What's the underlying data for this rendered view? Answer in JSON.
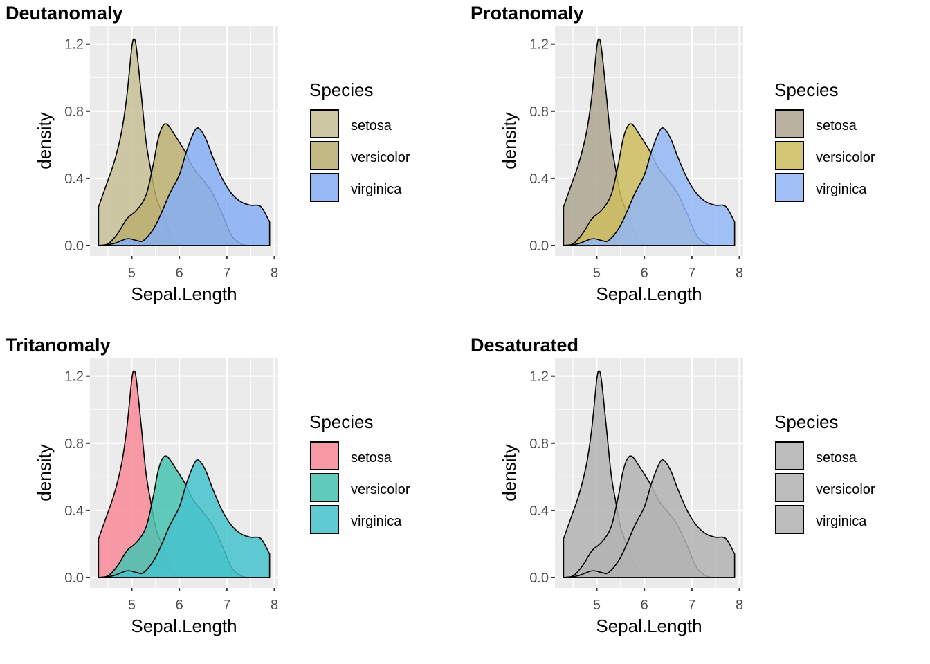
{
  "figure": {
    "layout": "2x2 grid of density plots"
  },
  "chart_data": [
    {
      "type": "area",
      "title": "Deutanomaly",
      "xlabel": "Sepal.Length",
      "ylabel": "density",
      "xlim": [
        4.12,
        8.08
      ],
      "ylim": [
        -0.062,
        1.31
      ],
      "xticks": [
        "5",
        "6",
        "7",
        "8"
      ],
      "yticks": [
        "0.0",
        "0.4",
        "0.8",
        "1.2"
      ],
      "grid": true,
      "legend": {
        "title": "Species",
        "position": "right"
      },
      "series": [
        {
          "name": "setosa",
          "fill": "#C8BF95",
          "alpha": 0.85
        },
        {
          "name": "versicolor",
          "fill": "#BBAF6E",
          "alpha": 0.85
        },
        {
          "name": "virginica",
          "fill": "#86AEF6",
          "alpha": 0.85
        }
      ]
    },
    {
      "type": "area",
      "title": "Protanomaly",
      "xlabel": "Sepal.Length",
      "ylabel": "density",
      "xlim": [
        4.12,
        8.08
      ],
      "ylim": [
        -0.062,
        1.31
      ],
      "xticks": [
        "5",
        "6",
        "7",
        "8"
      ],
      "yticks": [
        "0.0",
        "0.4",
        "0.8",
        "1.2"
      ],
      "grid": true,
      "legend": {
        "title": "Species",
        "position": "right"
      },
      "series": [
        {
          "name": "setosa",
          "fill": "#AFA690",
          "alpha": 0.85
        },
        {
          "name": "versicolor",
          "fill": "#CDBD5E",
          "alpha": 0.85
        },
        {
          "name": "virginica",
          "fill": "#93B7F7",
          "alpha": 0.85
        }
      ]
    },
    {
      "type": "area",
      "title": "Tritanomaly",
      "xlabel": "Sepal.Length",
      "ylabel": "density",
      "xlim": [
        4.12,
        8.08
      ],
      "ylim": [
        -0.062,
        1.31
      ],
      "xticks": [
        "5",
        "6",
        "7",
        "8"
      ],
      "yticks": [
        "0.0",
        "0.4",
        "0.8",
        "1.2"
      ],
      "grid": true,
      "legend": {
        "title": "Species",
        "position": "right"
      },
      "series": [
        {
          "name": "setosa",
          "fill": "#F98B98",
          "alpha": 0.85
        },
        {
          "name": "versicolor",
          "fill": "#46C3B2",
          "alpha": 0.85
        },
        {
          "name": "virginica",
          "fill": "#46C3CC",
          "alpha": 0.85
        }
      ]
    },
    {
      "type": "area",
      "title": "Desaturated",
      "xlabel": "Sepal.Length",
      "ylabel": "density",
      "xlim": [
        4.12,
        8.08
      ],
      "ylim": [
        -0.062,
        1.31
      ],
      "xticks": [
        "5",
        "6",
        "7",
        "8"
      ],
      "yticks": [
        "0.0",
        "0.4",
        "0.8",
        "1.2"
      ],
      "grid": true,
      "legend": {
        "title": "Species",
        "position": "right"
      },
      "series": [
        {
          "name": "setosa",
          "fill": "#B3B3B3",
          "alpha": 0.85
        },
        {
          "name": "versicolor",
          "fill": "#B3B3B3",
          "alpha": 0.85
        },
        {
          "name": "virginica",
          "fill": "#B3B3B3",
          "alpha": 0.85
        }
      ]
    }
  ],
  "density_curves": {
    "x_values": "Sepal.Length",
    "setosa": [
      [
        4.3,
        0.23
      ],
      [
        4.4,
        0.31
      ],
      [
        4.5,
        0.39
      ],
      [
        4.6,
        0.47
      ],
      [
        4.7,
        0.57
      ],
      [
        4.8,
        0.7
      ],
      [
        4.9,
        0.9
      ],
      [
        5.0,
        1.18
      ],
      [
        5.05,
        1.23
      ],
      [
        5.1,
        1.17
      ],
      [
        5.2,
        0.9
      ],
      [
        5.3,
        0.62
      ],
      [
        5.4,
        0.45
      ],
      [
        5.5,
        0.3
      ],
      [
        5.6,
        0.22
      ],
      [
        5.7,
        0.15
      ],
      [
        5.8,
        0.07
      ],
      [
        5.9,
        0.02
      ],
      [
        6.0,
        0.005
      ],
      [
        6.1,
        0.0
      ]
    ],
    "versicolor": [
      [
        4.3,
        0.0
      ],
      [
        4.5,
        0.01
      ],
      [
        4.7,
        0.07
      ],
      [
        4.9,
        0.16
      ],
      [
        5.1,
        0.21
      ],
      [
        5.3,
        0.3
      ],
      [
        5.45,
        0.48
      ],
      [
        5.55,
        0.63
      ],
      [
        5.65,
        0.71
      ],
      [
        5.75,
        0.72
      ],
      [
        5.9,
        0.66
      ],
      [
        6.1,
        0.57
      ],
      [
        6.3,
        0.46
      ],
      [
        6.5,
        0.39
      ],
      [
        6.7,
        0.31
      ],
      [
        6.9,
        0.19
      ],
      [
        7.1,
        0.06
      ],
      [
        7.3,
        0.01
      ],
      [
        7.5,
        0.0
      ],
      [
        7.9,
        0.0
      ]
    ],
    "virginica": [
      [
        4.3,
        0.0
      ],
      [
        4.6,
        0.01
      ],
      [
        4.9,
        0.04
      ],
      [
        5.1,
        0.03
      ],
      [
        5.25,
        0.03
      ],
      [
        5.5,
        0.12
      ],
      [
        5.8,
        0.31
      ],
      [
        6.0,
        0.42
      ],
      [
        6.15,
        0.56
      ],
      [
        6.3,
        0.67
      ],
      [
        6.4,
        0.7
      ],
      [
        6.55,
        0.64
      ],
      [
        6.7,
        0.53
      ],
      [
        6.9,
        0.4
      ],
      [
        7.1,
        0.31
      ],
      [
        7.3,
        0.26
      ],
      [
        7.5,
        0.24
      ],
      [
        7.65,
        0.24
      ],
      [
        7.75,
        0.22
      ],
      [
        7.9,
        0.14
      ]
    ]
  }
}
